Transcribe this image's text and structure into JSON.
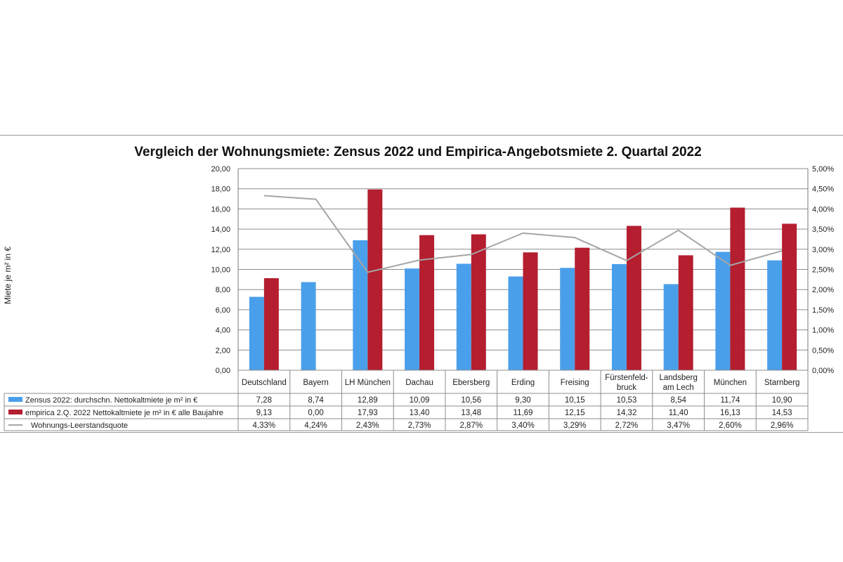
{
  "chart_data": {
    "type": "bar",
    "title": "Vergleich der Wohnungsmiete: Zensus 2022 und Empirica-Angebotsmiete 2. Quartal 2022",
    "ylabel": "Miete je m² in €",
    "ylim": [
      0,
      20
    ],
    "y2lim": [
      0,
      5
    ],
    "y_ticks": [
      "0,00",
      "2,00",
      "4,00",
      "6,00",
      "8,00",
      "10,00",
      "12,00",
      "14,00",
      "16,00",
      "18,00",
      "20,00"
    ],
    "y2_ticks": [
      "0,00%",
      "0,50%",
      "1,00%",
      "1,50%",
      "2,00%",
      "2,50%",
      "3,00%",
      "3,50%",
      "4,00%",
      "4,50%",
      "5,00%"
    ],
    "grid": true,
    "legend_position": "data-table-left",
    "categories": [
      [
        "Deutschland"
      ],
      [
        "Bayern"
      ],
      [
        "LH München"
      ],
      [
        "Dachau"
      ],
      [
        "Ebersberg"
      ],
      [
        "Erding"
      ],
      [
        "Freising"
      ],
      [
        "Fürstenfeld-",
        "bruck"
      ],
      [
        "Landsberg",
        "am Lech"
      ],
      [
        "München"
      ],
      [
        "Starnberg"
      ]
    ],
    "series": [
      {
        "name": "Zensus 2022: durchschn. Nettokaltmiete je m² in €",
        "type": "bar",
        "axis": "left",
        "color": "#4a9fea",
        "values": [
          7.28,
          8.74,
          12.89,
          10.09,
          10.56,
          9.3,
          10.15,
          10.53,
          8.54,
          11.74,
          10.9
        ],
        "labels": [
          "7,28",
          "8,74",
          "12,89",
          "10,09",
          "10,56",
          "9,30",
          "10,15",
          "10,53",
          "8,54",
          "11,74",
          "10,90"
        ]
      },
      {
        "name": "empirica 2.Q. 2022 Nettokaltmiete je m² in € alle Baujahre",
        "type": "bar",
        "axis": "left",
        "color": "#b41e2f",
        "values": [
          9.13,
          0.0,
          17.93,
          13.4,
          13.48,
          11.69,
          12.15,
          14.32,
          11.4,
          16.13,
          14.53
        ],
        "labels": [
          "9,13",
          "0,00",
          "17,93",
          "13,40",
          "13,48",
          "11,69",
          "12,15",
          "14,32",
          "11,40",
          "16,13",
          "14,53"
        ]
      },
      {
        "name": "Wohnungs-Leerstandsquote",
        "type": "line",
        "axis": "right",
        "color": "#a6a6a6",
        "values": [
          4.33,
          4.24,
          2.43,
          2.73,
          2.87,
          3.4,
          3.29,
          2.72,
          3.47,
          2.6,
          2.96
        ],
        "labels": [
          "4,33%",
          "4,24%",
          "2,43%",
          "2,73%",
          "2,87%",
          "3,40%",
          "3,29%",
          "2,72%",
          "3,47%",
          "2,60%",
          "2,96%"
        ]
      }
    ]
  }
}
